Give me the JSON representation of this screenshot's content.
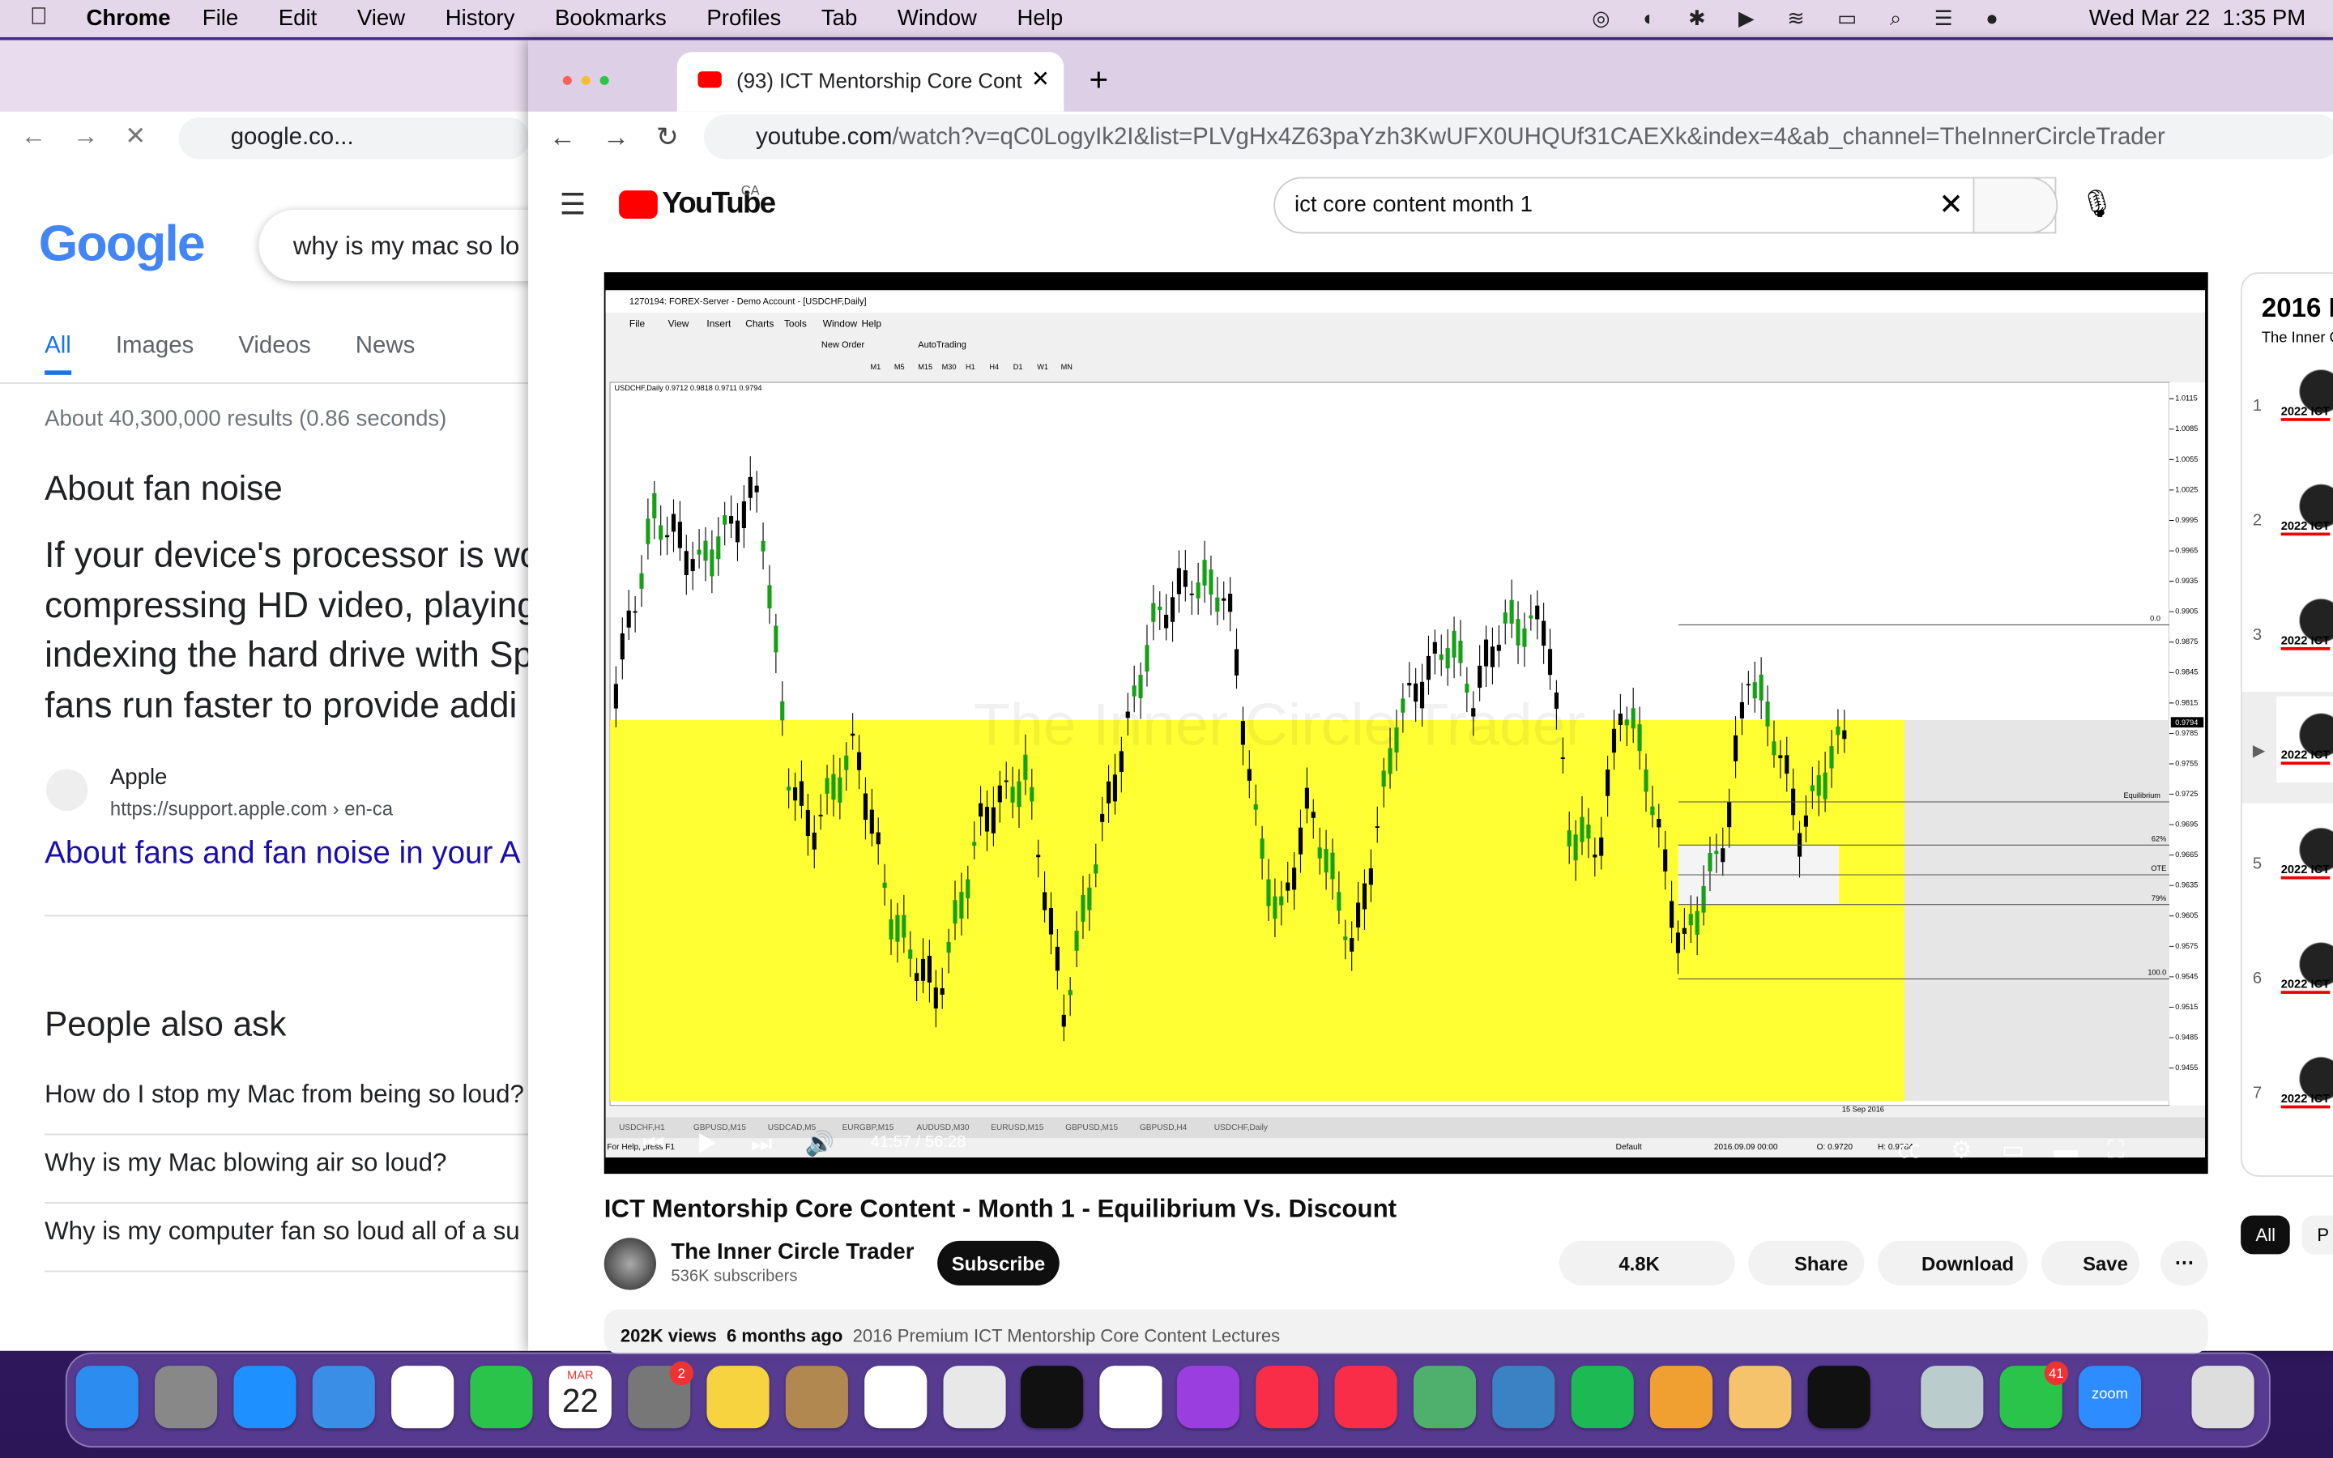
{
  "menubar": {
    "app": "Chrome",
    "menus": [
      "File",
      "Edit",
      "View",
      "History",
      "Bookmarks",
      "Profiles",
      "Tab",
      "Window",
      "Help"
    ],
    "datetime": "Wed Mar 22  1:35 PM"
  },
  "back_window": {
    "address": "google.co...",
    "logo": "Google",
    "search": "why is my mac so lo",
    "tabs": [
      "All",
      "Images",
      "Videos",
      "News"
    ],
    "result_stats": "About 40,300,000 results (0.86 seconds)",
    "snippet_title": "About fan noise",
    "snippet_lines": [
      "If your device's processor is wo",
      "compressing HD video, playing",
      "indexing the hard drive with Sp",
      "fans run faster to provide addi"
    ],
    "source_name": "Apple",
    "source_url": "https://support.apple.com › en-ca",
    "link": "About fans and fan noise in your A",
    "paa_title": "People also ask",
    "questions": [
      "How do I stop my Mac from being so loud?",
      "Why is my Mac blowing air so loud?",
      "Why is my computer fan so loud all of a su"
    ]
  },
  "front_window": {
    "tab_title": "(93) ICT Mentorship Core Cont",
    "url_host": "youtube.com",
    "url_path": "/watch?v=qC0LogyIk2I&list=PLVgHx4Z63paYzh3KwUFX0UHQUf31CAEXk&index=4&ab_channel=TheInnerCircleTrader",
    "logo": "YouTube",
    "region": "CA",
    "search": "ict core content month 1"
  },
  "video": {
    "window_title": "1270194: FOREX-Server - Demo Account - [USDCHF,Daily]",
    "menus": [
      "File",
      "View",
      "Insert",
      "Charts",
      "Tools",
      "Window",
      "Help"
    ],
    "new_order": "New Order",
    "autotrading": "AutoTrading",
    "timeframes": [
      "M1",
      "M5",
      "M15",
      "M30",
      "H1",
      "H4",
      "D1",
      "W1",
      "MN"
    ],
    "symbol_line": "USDCHF,Daily  0.9712 0.9818 0.9711 0.9794",
    "watermark": "The Inner Circle Trader",
    "price_labels": [
      "1.0115",
      "1.0085",
      "1.0055",
      "1.0025",
      "0.9995",
      "0.9965",
      "0.9935",
      "0.9905",
      "0.9875",
      "0.9845",
      "0.9815",
      "0.9785",
      "0.9755",
      "0.9725",
      "0.9695",
      "0.9665",
      "0.9635",
      "0.9605",
      "0.9575",
      "0.9545",
      "0.9515",
      "0.9485",
      "0.9455"
    ],
    "current_price": "0.9794",
    "levels": [
      "0.0",
      "Equilibrium",
      "62%",
      "OTE",
      "79%",
      "100.0"
    ],
    "last_date": "15 Sep 2016",
    "sheet_tabs": [
      "USDCHF,H1",
      "GBPUSD,M15",
      "USDCAD,M5",
      "EURGBP,M15",
      "AUDUSD,M30",
      "EURUSD,M15",
      "GBPUSD,M15",
      "GBPUSD,H4",
      "USDCHF,Daily"
    ],
    "status": [
      "For Help, press F1",
      "Default",
      "2016.09.09 00:00",
      "O: 0.9720",
      "H: 0.9784"
    ],
    "time": "41:57 / 56:28"
  },
  "video_info": {
    "title": "ICT Mentorship Core Content - Month 1 - Equilibrium Vs. Discount",
    "channel": "The Inner Circle Trader",
    "subscribers": "536K subscribers",
    "subscribe": "Subscribe",
    "likes": "4.8K",
    "share": "Share",
    "download": "Download",
    "save": "Save",
    "views": "202K views",
    "ago": "6 months ago",
    "playlist": "2016 Premium ICT Mentorship Core Content Lectures"
  },
  "sidebar": {
    "title": "2016 P",
    "subtitle": "The Inner C",
    "items": [
      "1",
      "2",
      "3",
      "▶",
      "5",
      "6",
      "7"
    ],
    "item_label": "2022 ICT",
    "chips": [
      "All",
      "P"
    ]
  },
  "dock": {
    "calendar_month": "MAR",
    "calendar_day": "22",
    "settings_badge": "2",
    "messages_badge": "41",
    "zoom": "zoom"
  }
}
